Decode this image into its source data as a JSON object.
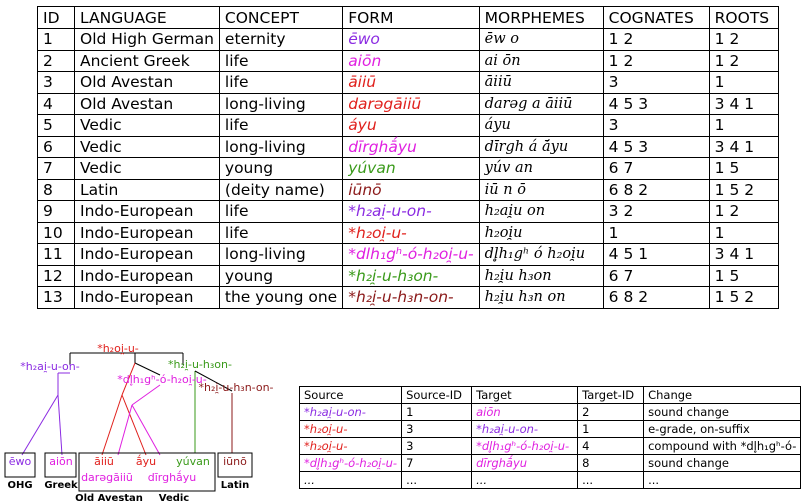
{
  "colors": {
    "purple": "#8b2be2",
    "magenta": "#e020e0",
    "red": "#e0201c",
    "green": "#3a9a1a",
    "darkred": "#8b1a1a",
    "black": "#000000"
  },
  "table": {
    "headers": [
      "ID",
      "LANGUAGE",
      "CONCEPT",
      "FORM",
      "MORPHEMES",
      "COGNATES",
      "ROOTS"
    ],
    "rows": [
      {
        "id": "1",
        "language": "Old High German",
        "concept": "eternity",
        "form": "ēwo",
        "color": "purple",
        "morphemes": "ēw o",
        "cognates": "1 2",
        "roots": "1 2"
      },
      {
        "id": "2",
        "language": "Ancient Greek",
        "concept": "life",
        "form": "aiōn",
        "color": "magenta",
        "morphemes": "ai ōn",
        "cognates": "1 2",
        "roots": "1 2"
      },
      {
        "id": "3",
        "language": "Old Avestan",
        "concept": "life",
        "form": "āiiū",
        "color": "red",
        "morphemes": "āiiū",
        "cognates": "3",
        "roots": "1"
      },
      {
        "id": "4",
        "language": "Old Avestan",
        "concept": "long-living",
        "form": "darəgāiiū",
        "color": "red",
        "morphemes": "darəg a āiiū",
        "cognates": "4 5 3",
        "roots": "3 4 1"
      },
      {
        "id": "5",
        "language": "Vedic",
        "concept": "life",
        "form": "áyu",
        "color": "red",
        "morphemes": "áyu",
        "cognates": "3",
        "roots": "1"
      },
      {
        "id": "6",
        "language": "Vedic",
        "concept": "long-living",
        "form": "dīrghā́yu",
        "color": "magenta",
        "morphemes": "dīrgh á ā́yu",
        "cognates": "4 5 3",
        "roots": "3 4 1"
      },
      {
        "id": "7",
        "language": "Vedic",
        "concept": "young",
        "form": "yúvan",
        "color": "green",
        "morphemes": "yúv an",
        "cognates": "6 7",
        "roots": "1 5"
      },
      {
        "id": "8",
        "language": "Latin",
        "concept": "(deity name)",
        "form": "iūnō",
        "color": "darkred",
        "morphemes": "iū n ō",
        "cognates": "6 8 2",
        "roots": "1 5 2"
      },
      {
        "id": "9",
        "language": "Indo-European",
        "concept": "life",
        "form": "*h₂ai̯-u-on-",
        "color": "purple",
        "morphemes": "h₂ai̯u on",
        "cognates": "3 2",
        "roots": "1 2"
      },
      {
        "id": "10",
        "language": "Indo-European",
        "concept": "life",
        "form": "*h₂oi̯-u-",
        "color": "red",
        "morphemes": "h₂oi̯u",
        "cognates": "1",
        "roots": "1"
      },
      {
        "id": "11",
        "language": "Indo-European",
        "concept": "long-living",
        "form": "*dlh₁gʰ-ó-h₂oi̯-u-",
        "color": "magenta",
        "morphemes": "dl̥h₁gʰ ó h₂oi̯u",
        "cognates": "4 5 1",
        "roots": "3 4 1"
      },
      {
        "id": "12",
        "language": "Indo-European",
        "concept": "young",
        "form": "*h₂i̯-u-h₃on-",
        "color": "green",
        "morphemes": "h₂i̯u h₃on",
        "cognates": "6 7",
        "roots": "1 5"
      },
      {
        "id": "13",
        "language": "Indo-European",
        "concept": "the young one",
        "form": "*h₂i̯-u-h₃n-on-",
        "color": "darkred",
        "morphemes": "h₂i̯u h₃n on",
        "cognates": "6 8 2",
        "roots": "1 5 2"
      }
    ]
  },
  "tree": {
    "root": "*h₂oi̯-u-",
    "nodes": {
      "h2ai": "*h₂ai̯-u-on-",
      "dlhg": "*dl̥h₁gʰ-ó-h₂oi̯-u-",
      "h2iu": "*h₂i̯-u-h₃on-",
      "h2iun": "*h₂i̯-u-h₃n-on-"
    },
    "leaves": {
      "ewo": "ēwo",
      "aion": "aiōn",
      "aiiu": "āiiū",
      "darega": "darəgāiiū",
      "ayu": "ā́yu",
      "dirgh": "dīrghā́yu",
      "yuvan": "yúvan",
      "iuno": "iūnō"
    },
    "languages": {
      "ohg": "OHG",
      "greek": "Greek",
      "avestan": "Old Avestan",
      "vedic": "Vedic",
      "latin": "Latin"
    }
  },
  "changes": {
    "headers": [
      "Source",
      "Source-ID",
      "Target",
      "Target-ID",
      "Change"
    ],
    "rows": [
      {
        "source": "*h₂ai̯-u-on-",
        "source_color": "purple",
        "source_id": "1",
        "target": "aiōn",
        "target_color": "magenta",
        "target_id": "2",
        "change": "sound change"
      },
      {
        "source": "*h₂oi̯-u-",
        "source_color": "red",
        "source_id": "3",
        "target": "*h₂ai̯-u-on-",
        "target_color": "purple",
        "target_id": "1",
        "change": "e-grade, on-suffix"
      },
      {
        "source": "*h₂oi̯-u-",
        "source_color": "red",
        "source_id": "3",
        "target": "*dl̥h₁gʰ-ó-h₂oi̯-u-",
        "target_color": "magenta",
        "target_id": "4",
        "change": "compound with *dl̥h₁gʰ-ó-"
      },
      {
        "source": "*dl̥h₁gʰ-ó-h₂oi̯-u-",
        "source_color": "magenta",
        "source_id": "7",
        "target": "dīrghā́yu",
        "target_color": "magenta",
        "target_id": "8",
        "change": "sound change"
      },
      {
        "source": "...",
        "source_color": "black",
        "source_id": "...",
        "target": "...",
        "target_color": "black",
        "target_id": "...",
        "change": "..."
      }
    ]
  }
}
